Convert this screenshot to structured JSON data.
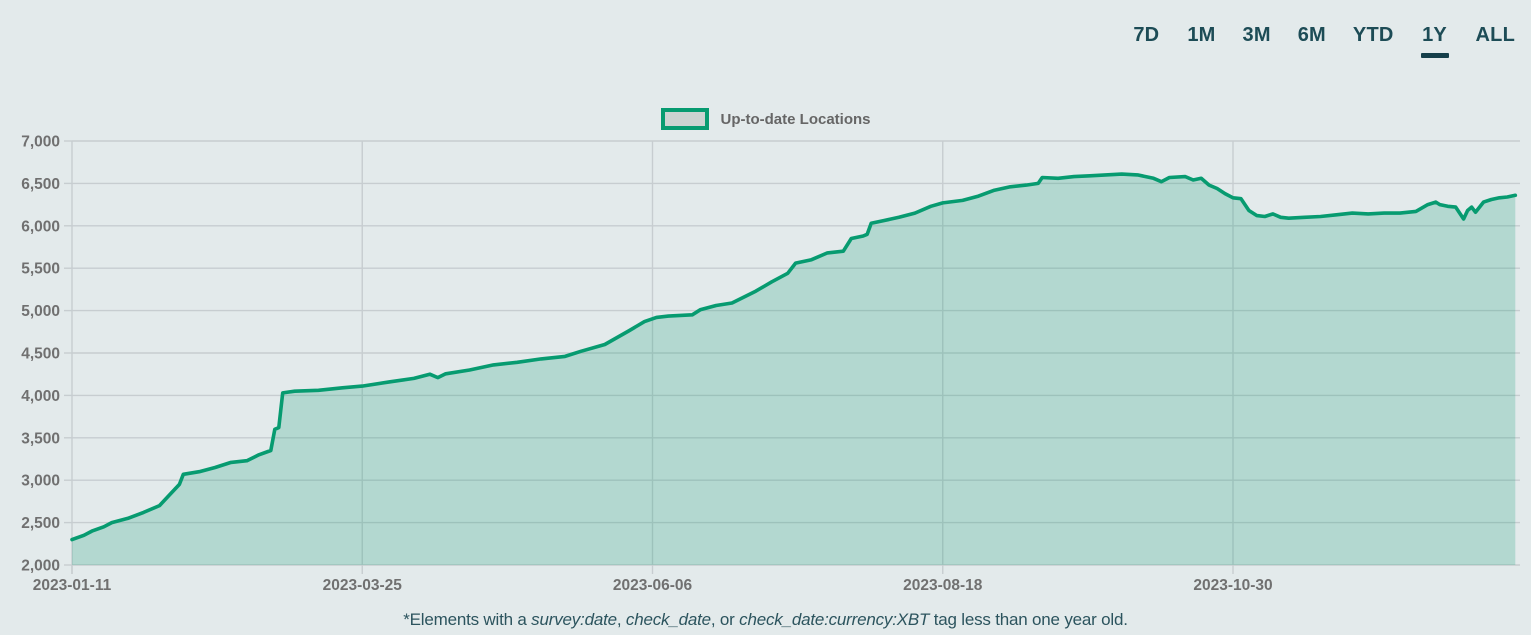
{
  "range_selector": {
    "active": "1Y",
    "options": [
      {
        "label": "7D",
        "active": false
      },
      {
        "label": "1M",
        "active": false
      },
      {
        "label": "3M",
        "active": false
      },
      {
        "label": "6M",
        "active": false
      },
      {
        "label": "YTD",
        "active": false
      },
      {
        "label": "1Y",
        "active": true
      },
      {
        "label": "ALL",
        "active": false
      }
    ]
  },
  "legend": {
    "label": "Up-to-date Locations"
  },
  "footnote": {
    "prefix": "*Elements with a ",
    "tag1": "survey:date",
    "sep1": ", ",
    "tag2": "check_date",
    "sep2": ", or ",
    "tag3": "check_date:currency:XBT",
    "suffix": " tag less than one year old."
  },
  "chart_data": {
    "type": "area",
    "title": "",
    "series_name": "Up-to-date Locations",
    "legend_position": "top-center",
    "grid": true,
    "ylim": [
      2000,
      7000
    ],
    "y_ticks": [
      2000,
      2500,
      3000,
      3500,
      4000,
      4500,
      5000,
      5500,
      6000,
      6500,
      7000
    ],
    "x_tick_labels": [
      "2023-01-11",
      "2023-03-25",
      "2023-06-06",
      "2023-08-18",
      "2023-10-30"
    ],
    "x_tick_days": [
      0,
      73,
      146,
      219,
      292
    ],
    "x_total_days": 363,
    "colors": {
      "line": "#079b70",
      "fill": "rgba(7,155,112,0.22)",
      "grid": "#c7cdd0",
      "axis_text": "#707070",
      "background": "#e3eaeb"
    },
    "points": [
      [
        0,
        2300
      ],
      [
        3,
        2350
      ],
      [
        5,
        2400
      ],
      [
        8,
        2450
      ],
      [
        10,
        2500
      ],
      [
        14,
        2550
      ],
      [
        18,
        2620
      ],
      [
        22,
        2700
      ],
      [
        25,
        2850
      ],
      [
        27,
        2950
      ],
      [
        28,
        3070
      ],
      [
        32,
        3100
      ],
      [
        36,
        3150
      ],
      [
        40,
        3210
      ],
      [
        44,
        3230
      ],
      [
        47,
        3300
      ],
      [
        50,
        3350
      ],
      [
        51,
        3600
      ],
      [
        52,
        3620
      ],
      [
        53,
        4030
      ],
      [
        56,
        4050
      ],
      [
        62,
        4060
      ],
      [
        68,
        4090
      ],
      [
        73,
        4110
      ],
      [
        80,
        4160
      ],
      [
        86,
        4200
      ],
      [
        90,
        4250
      ],
      [
        92,
        4210
      ],
      [
        94,
        4255
      ],
      [
        100,
        4300
      ],
      [
        106,
        4360
      ],
      [
        112,
        4390
      ],
      [
        118,
        4430
      ],
      [
        124,
        4460
      ],
      [
        128,
        4520
      ],
      [
        134,
        4600
      ],
      [
        140,
        4760
      ],
      [
        144,
        4870
      ],
      [
        147,
        4920
      ],
      [
        150,
        4935
      ],
      [
        156,
        4950
      ],
      [
        158,
        5010
      ],
      [
        162,
        5060
      ],
      [
        166,
        5090
      ],
      [
        172,
        5230
      ],
      [
        176,
        5340
      ],
      [
        180,
        5440
      ],
      [
        182,
        5560
      ],
      [
        186,
        5600
      ],
      [
        190,
        5680
      ],
      [
        194,
        5700
      ],
      [
        196,
        5850
      ],
      [
        199,
        5880
      ],
      [
        200,
        5900
      ],
      [
        201,
        6030
      ],
      [
        204,
        6060
      ],
      [
        208,
        6100
      ],
      [
        212,
        6150
      ],
      [
        216,
        6230
      ],
      [
        219,
        6270
      ],
      [
        224,
        6300
      ],
      [
        228,
        6350
      ],
      [
        232,
        6420
      ],
      [
        236,
        6460
      ],
      [
        240,
        6480
      ],
      [
        243,
        6500
      ],
      [
        244,
        6570
      ],
      [
        248,
        6560
      ],
      [
        252,
        6580
      ],
      [
        256,
        6590
      ],
      [
        260,
        6600
      ],
      [
        264,
        6610
      ],
      [
        268,
        6600
      ],
      [
        272,
        6560
      ],
      [
        274,
        6520
      ],
      [
        276,
        6570
      ],
      [
        280,
        6580
      ],
      [
        282,
        6540
      ],
      [
        284,
        6560
      ],
      [
        286,
        6480
      ],
      [
        288,
        6440
      ],
      [
        290,
        6380
      ],
      [
        292,
        6330
      ],
      [
        294,
        6320
      ],
      [
        296,
        6180
      ],
      [
        298,
        6120
      ],
      [
        300,
        6110
      ],
      [
        302,
        6140
      ],
      [
        304,
        6100
      ],
      [
        306,
        6090
      ],
      [
        310,
        6100
      ],
      [
        314,
        6110
      ],
      [
        318,
        6130
      ],
      [
        322,
        6150
      ],
      [
        326,
        6140
      ],
      [
        330,
        6150
      ],
      [
        334,
        6150
      ],
      [
        338,
        6170
      ],
      [
        341,
        6250
      ],
      [
        343,
        6280
      ],
      [
        344,
        6250
      ],
      [
        346,
        6230
      ],
      [
        348,
        6220
      ],
      [
        350,
        6080
      ],
      [
        351,
        6180
      ],
      [
        352,
        6220
      ],
      [
        353,
        6160
      ],
      [
        355,
        6280
      ],
      [
        357,
        6310
      ],
      [
        359,
        6330
      ],
      [
        361,
        6340
      ],
      [
        363,
        6360
      ]
    ]
  }
}
